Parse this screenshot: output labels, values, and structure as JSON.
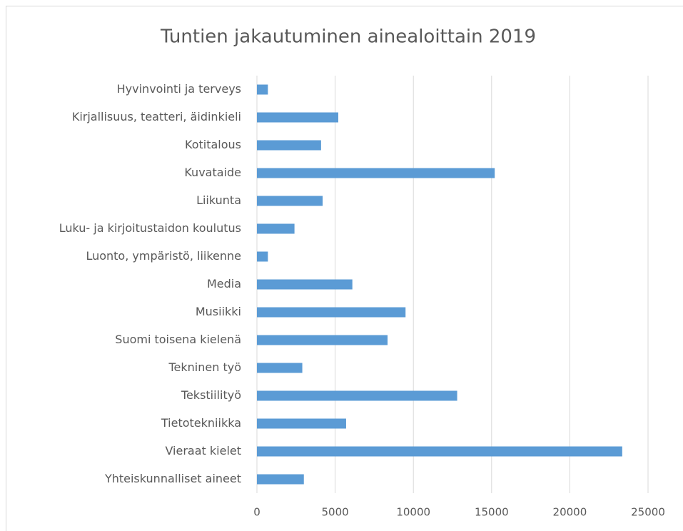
{
  "chart_data": {
    "type": "bar",
    "orientation": "horizontal",
    "title": "Tuntien jakautuminen ainealoittain 2019",
    "categories": [
      "Hyvinvointi ja terveys",
      "Kirjallisuus, teatteri, äidinkieli",
      "Kotitalous",
      "Kuvataide",
      "Liikunta",
      "Luku- ja kirjoitustaidon koulutus",
      "Luonto, ympäristö, liikenne",
      "Media",
      "Musiikki",
      "Suomi toisena kielenä",
      "Tekninen työ",
      "Tekstiilityö",
      "Tietotekniikka",
      "Vieraat kielet",
      "Yhteiskunnalliset aineet"
    ],
    "values": [
      700,
      5200,
      4100,
      15200,
      4200,
      2400,
      700,
      6100,
      9500,
      8350,
      2900,
      12800,
      5700,
      23350,
      3000
    ],
    "color": "#5b9bd5",
    "xlim": [
      0,
      25000
    ],
    "xticks": [
      0,
      5000,
      10000,
      15000,
      20000,
      25000
    ],
    "grid": true
  }
}
